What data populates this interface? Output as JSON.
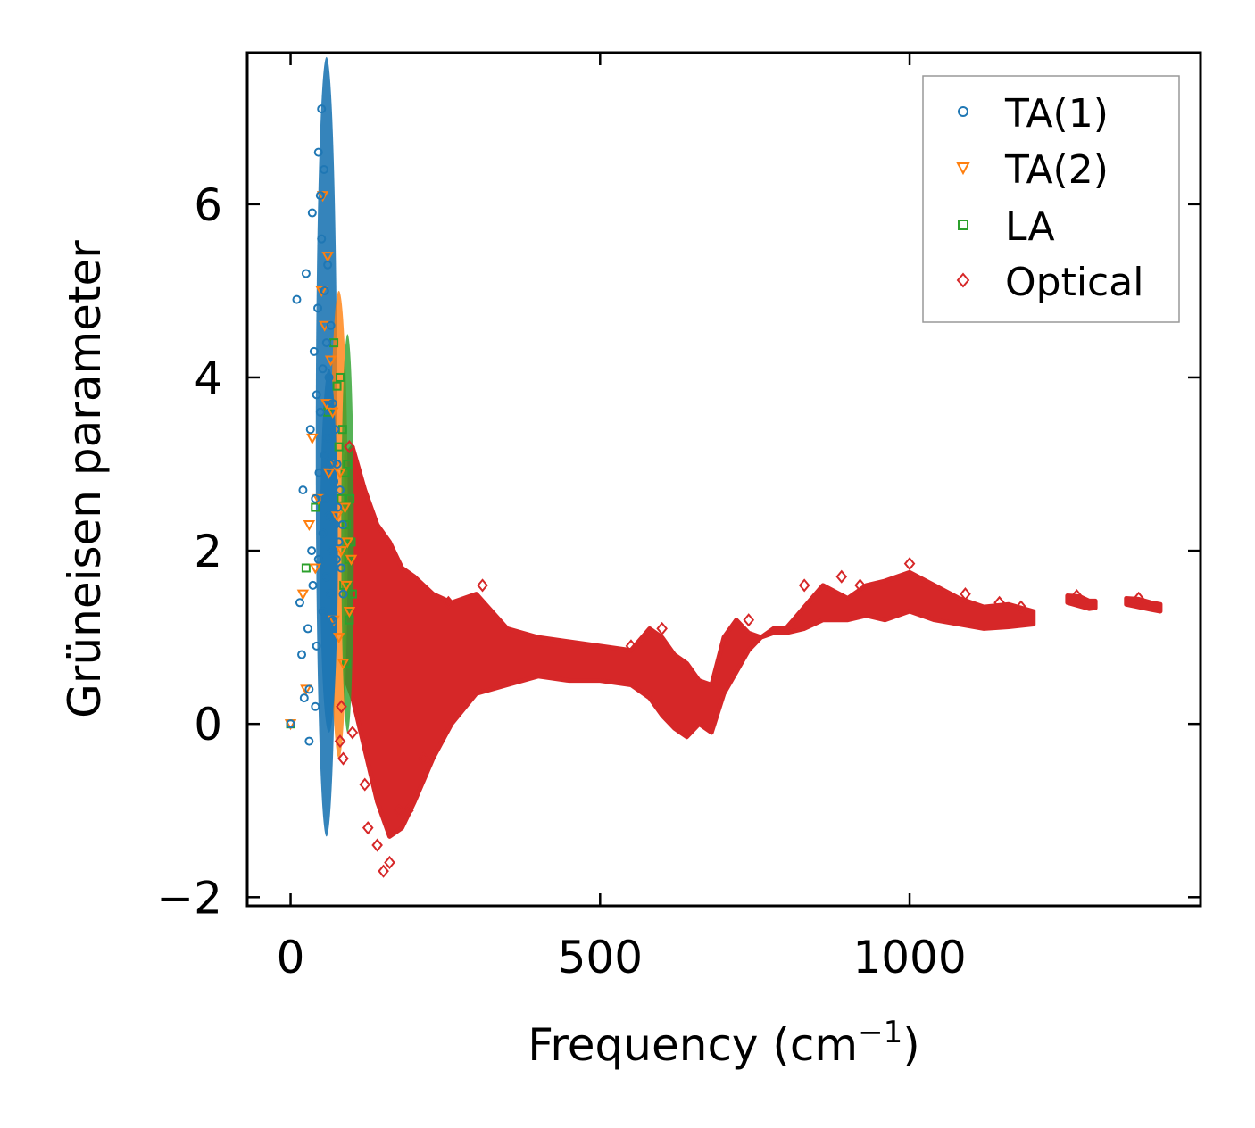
{
  "chart_data": {
    "type": "scatter",
    "title": "",
    "xlabel": "Frequency (cm",
    "xlabel_sup": "−1",
    "xlabel_tail": ")",
    "ylabel": "Grüneisen parameter",
    "xlim": [
      -70,
      1470
    ],
    "ylim": [
      -2.1,
      7.75
    ],
    "xticks": [
      0,
      500,
      1000
    ],
    "xtick_labels": [
      "0",
      "500",
      "1000"
    ],
    "yticks": [
      -2,
      0,
      2,
      4,
      6
    ],
    "ytick_labels": [
      "−2",
      "0",
      "2",
      "4",
      "6"
    ],
    "grid": false,
    "legend_position": "top-right",
    "series": [
      {
        "name": "TA(1)",
        "marker": "circle",
        "color": "#1f77b4",
        "points": [
          [
            0,
            0
          ],
          [
            10,
            4.9
          ],
          [
            15,
            1.4
          ],
          [
            18,
            0.8
          ],
          [
            20,
            2.7
          ],
          [
            22,
            0.3
          ],
          [
            25,
            5.2
          ],
          [
            28,
            1.1
          ],
          [
            30,
            -0.2
          ],
          [
            30,
            0.4
          ],
          [
            32,
            3.4
          ],
          [
            34,
            2.0
          ],
          [
            35,
            5.9
          ],
          [
            36,
            1.6
          ],
          [
            38,
            4.3
          ],
          [
            40,
            0.2
          ],
          [
            40,
            2.6
          ],
          [
            42,
            3.8
          ],
          [
            42,
            0.9
          ],
          [
            44,
            4.8
          ],
          [
            45,
            6.6
          ],
          [
            45,
            1.9
          ],
          [
            46,
            2.9
          ],
          [
            48,
            3.6
          ],
          [
            48,
            6.1
          ],
          [
            50,
            7.1
          ],
          [
            50,
            5.6
          ],
          [
            52,
            4.1
          ],
          [
            52,
            2.2
          ],
          [
            52,
            1.3
          ],
          [
            54,
            6.4
          ],
          [
            55,
            3.1
          ],
          [
            55,
            5.0
          ],
          [
            56,
            2.6
          ],
          [
            58,
            4.4
          ],
          [
            58,
            1.7
          ],
          [
            60,
            3.3
          ],
          [
            60,
            5.3
          ],
          [
            62,
            2.4
          ],
          [
            62,
            4.0
          ],
          [
            64,
            3.0
          ],
          [
            64,
            1.5
          ],
          [
            65,
            4.6
          ],
          [
            66,
            2.0
          ],
          [
            68,
            3.7
          ],
          [
            68,
            1.2
          ],
          [
            70,
            2.8
          ],
          [
            72,
            2.3
          ],
          [
            72,
            3.4
          ],
          [
            74,
            1.9
          ],
          [
            75,
            3.0
          ],
          [
            76,
            2.5
          ],
          [
            78,
            2.1
          ],
          [
            80,
            2.7
          ],
          [
            82,
            1.8
          ],
          [
            84,
            2.3
          ],
          [
            85,
            1.5
          ]
        ]
      },
      {
        "name": "TA(2)",
        "marker": "triangle",
        "color": "#ff7f0e",
        "points": [
          [
            0,
            0
          ],
          [
            20,
            1.5
          ],
          [
            25,
            0.4
          ],
          [
            30,
            2.3
          ],
          [
            35,
            3.3
          ],
          [
            40,
            1.8
          ],
          [
            45,
            2.6
          ],
          [
            50,
            5.0
          ],
          [
            52,
            6.1
          ],
          [
            55,
            4.6
          ],
          [
            58,
            3.7
          ],
          [
            60,
            5.4
          ],
          [
            62,
            2.9
          ],
          [
            65,
            4.2
          ],
          [
            68,
            3.6
          ],
          [
            70,
            1.2
          ],
          [
            72,
            3.0
          ],
          [
            75,
            2.4
          ],
          [
            78,
            1.0
          ],
          [
            80,
            2.9
          ],
          [
            82,
            2.0
          ],
          [
            85,
            0.7
          ],
          [
            88,
            2.5
          ],
          [
            90,
            1.6
          ],
          [
            92,
            2.1
          ],
          [
            95,
            1.3
          ],
          [
            98,
            1.9
          ]
        ]
      },
      {
        "name": "LA",
        "marker": "square",
        "color": "#2ca02c",
        "points": [
          [
            0,
            0
          ],
          [
            25,
            1.8
          ],
          [
            40,
            2.5
          ],
          [
            60,
            3.6
          ],
          [
            70,
            4.4
          ],
          [
            75,
            3.9
          ],
          [
            78,
            3.2
          ],
          [
            80,
            4.0
          ],
          [
            82,
            2.6
          ],
          [
            84,
            3.4
          ],
          [
            86,
            1.6
          ],
          [
            88,
            2.9
          ],
          [
            90,
            0.7
          ],
          [
            90,
            2.3
          ],
          [
            92,
            3.0
          ],
          [
            94,
            1.9
          ],
          [
            95,
            1.2
          ],
          [
            96,
            2.6
          ],
          [
            98,
            2.1
          ],
          [
            100,
            1.5
          ]
        ]
      },
      {
        "name": "Optical",
        "marker": "diamond",
        "color": "#d62728",
        "points": [
          [
            80,
            -0.2
          ],
          [
            82,
            0.2
          ],
          [
            85,
            -0.4
          ],
          [
            95,
            3.2
          ],
          [
            100,
            -0.1
          ],
          [
            110,
            2.8
          ],
          [
            120,
            -0.7
          ],
          [
            125,
            -1.2
          ],
          [
            140,
            -1.4
          ],
          [
            150,
            -1.7
          ],
          [
            160,
            -1.6
          ],
          [
            175,
            -1.0
          ],
          [
            190,
            -1.0
          ],
          [
            215,
            -0.4
          ],
          [
            255,
            1.4
          ],
          [
            310,
            1.6
          ],
          [
            550,
            0.9
          ],
          [
            600,
            1.1
          ],
          [
            740,
            1.2
          ],
          [
            830,
            1.6
          ],
          [
            890,
            1.7
          ],
          [
            920,
            1.6
          ],
          [
            1000,
            1.85
          ],
          [
            1090,
            1.5
          ],
          [
            1145,
            1.4
          ],
          [
            1180,
            1.35
          ],
          [
            1270,
            1.48
          ],
          [
            1370,
            1.45
          ]
        ],
        "band": {
          "x": [
            90,
            100,
            120,
            140,
            160,
            180,
            200,
            230,
            260,
            300,
            350,
            400,
            450,
            500,
            550,
            580,
            600,
            620,
            640,
            660,
            680,
            700,
            720,
            740,
            760,
            780,
            800,
            830,
            860,
            900,
            930,
            960,
            1000,
            1040,
            1080,
            1120,
            1160,
            1200
          ],
          "upper": [
            3.1,
            3.2,
            2.7,
            2.3,
            2.1,
            1.8,
            1.7,
            1.5,
            1.4,
            1.5,
            1.1,
            1.0,
            0.95,
            0.9,
            0.85,
            1.1,
            1.0,
            0.8,
            0.7,
            0.5,
            0.45,
            1.0,
            1.2,
            1.05,
            1.0,
            1.1,
            1.1,
            1.35,
            1.6,
            1.45,
            1.6,
            1.65,
            1.75,
            1.6,
            1.45,
            1.35,
            1.38,
            1.3
          ],
          "lower": [
            0.5,
            0.3,
            -0.3,
            -0.9,
            -1.3,
            -1.2,
            -0.9,
            -0.4,
            0.0,
            0.35,
            0.45,
            0.55,
            0.5,
            0.5,
            0.45,
            0.3,
            0.1,
            -0.05,
            -0.15,
            0.0,
            -0.1,
            0.35,
            0.6,
            0.85,
            1.0,
            1.05,
            1.05,
            1.1,
            1.2,
            1.2,
            1.25,
            1.2,
            1.3,
            1.2,
            1.15,
            1.1,
            1.12,
            1.15
          ]
        },
        "segments": [
          {
            "x": [
              1255,
              1275,
              1290,
              1300
            ],
            "upper": [
              1.48,
              1.47,
              1.42,
              1.42
            ],
            "lower": [
              1.4,
              1.36,
              1.33,
              1.34
            ]
          },
          {
            "x": [
              1350,
              1370,
              1390,
              1405
            ],
            "upper": [
              1.45,
              1.44,
              1.4,
              1.38
            ],
            "lower": [
              1.38,
              1.35,
              1.32,
              1.3
            ]
          }
        ]
      }
    ]
  }
}
